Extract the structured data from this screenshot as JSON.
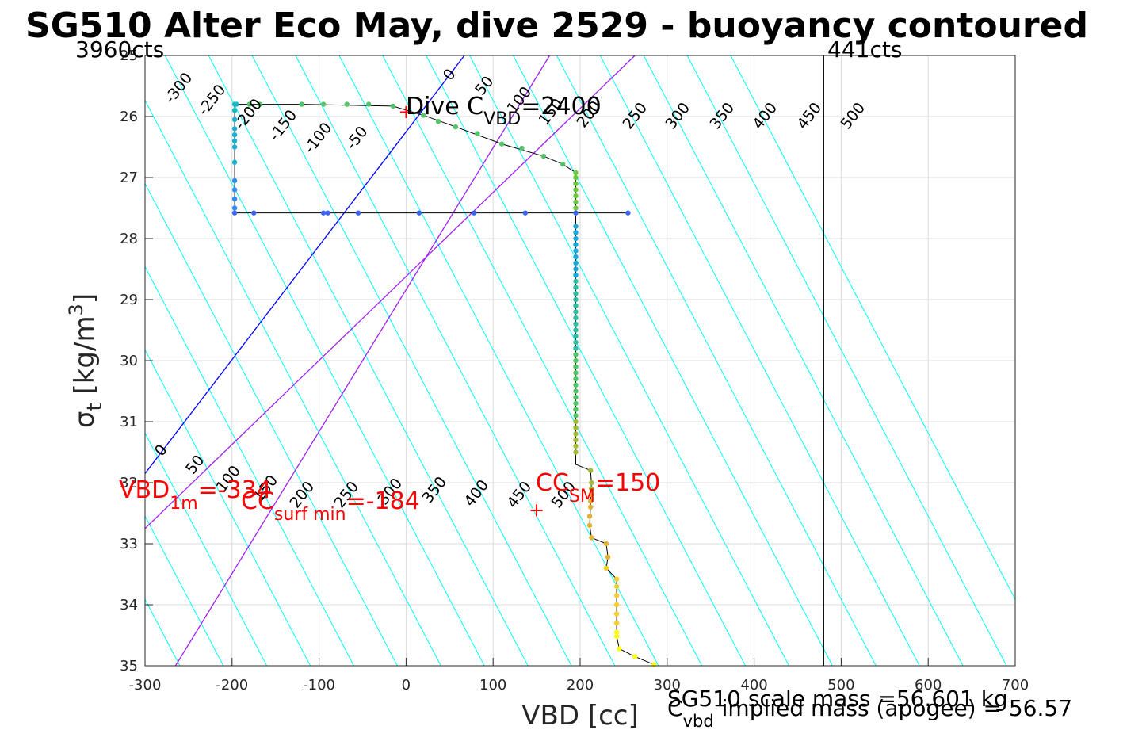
{
  "chart_data": {
    "type": "scatter",
    "title": "SG510 Alter Eco May, dive 2529 - buoyancy contoured",
    "xlabel": "VBD [cc]",
    "ylabel_main": "σ",
    "ylabel_sub": "t",
    "ylabel_unit": " [kg/m",
    "ylabel_sup": "3",
    "ylabel_close": "]",
    "xlim": [
      -300,
      700
    ],
    "ylim": [
      25,
      35
    ],
    "y_reversed": true,
    "grid": true,
    "xticks": [
      "-300",
      "-200",
      "-100",
      "0",
      "100",
      "200",
      "300",
      "400",
      "500",
      "600",
      "700"
    ],
    "yticks": [
      "25",
      "26",
      "27",
      "28",
      "29",
      "30",
      "31",
      "32",
      "33",
      "34",
      "35"
    ],
    "corner_left": "3960cts",
    "corner_right": "441cts",
    "vertical_line_vbd": 480,
    "buoyancy_contours": {
      "color": "#00ffff",
      "values": [
        -300,
        -250,
        -200,
        -150,
        -100,
        -50,
        0,
        50,
        100,
        150,
        200,
        250,
        300,
        350,
        400,
        450,
        500,
        550,
        600,
        650,
        700,
        750,
        800
      ],
      "labels_top": [
        "-300",
        "-250",
        "-200",
        "-150",
        "-100",
        "-50",
        "0",
        "50",
        "100",
        "150",
        "200",
        "250",
        "300",
        "350",
        "400",
        "450",
        "500"
      ],
      "labels_bottom": [
        "0",
        "50",
        "100",
        "150",
        "200",
        "250",
        "300",
        "350",
        "400",
        "450",
        "500"
      ]
    },
    "highlight_lines": [
      {
        "color": "#0000ff",
        "vbd_at_sigma25": 67,
        "vbd_at_sigma35": -300
      },
      {
        "color": "#a020f0",
        "vbd_at_sigma25": 165,
        "vbd_at_sigma35": -265
      },
      {
        "color": "#a020f0",
        "vbd_at_sigma25": 263,
        "vbd_at_sigma35": -300
      }
    ],
    "series": [
      {
        "points": [
          [
            -197,
            25.8
          ],
          [
            -197,
            25.9
          ],
          [
            -197,
            26.05
          ],
          [
            -197,
            26.2
          ],
          [
            -197,
            26.3
          ],
          [
            -197,
            26.4
          ],
          [
            -197,
            26.5
          ],
          [
            -197,
            26.75
          ],
          [
            -197,
            27.05
          ],
          [
            -197,
            27.2
          ],
          [
            -197,
            27.35
          ],
          [
            -197,
            27.5
          ],
          [
            -197,
            27.58
          ],
          [
            -195,
            25.8
          ],
          [
            -180,
            25.8
          ],
          [
            -168,
            25.8
          ],
          [
            -120,
            25.8
          ],
          [
            -95,
            25.8
          ],
          [
            -68,
            25.8
          ],
          [
            -43,
            25.8
          ],
          [
            -15,
            25.83
          ],
          [
            20,
            25.98
          ],
          [
            37,
            26.08
          ],
          [
            57,
            26.17
          ],
          [
            82,
            26.28
          ],
          [
            110,
            26.45
          ],
          [
            133,
            26.52
          ],
          [
            158,
            26.65
          ],
          [
            180,
            26.78
          ],
          [
            195,
            26.92
          ],
          [
            195,
            27.0
          ],
          [
            195,
            27.1
          ],
          [
            195,
            27.2
          ],
          [
            195,
            27.3
          ],
          [
            195,
            27.4
          ],
          [
            195,
            27.5
          ],
          [
            255,
            27.58
          ],
          [
            195,
            27.58
          ],
          [
            137,
            27.58
          ],
          [
            78,
            27.58
          ],
          [
            15,
            27.58
          ],
          [
            -55,
            27.58
          ],
          [
            -90,
            27.58
          ],
          [
            -95,
            27.58
          ],
          [
            -175,
            27.58
          ],
          [
            195,
            27.8
          ],
          [
            195,
            27.9
          ],
          [
            195,
            28.0
          ],
          [
            195,
            28.1
          ],
          [
            195,
            28.2
          ],
          [
            195,
            28.3
          ],
          [
            195,
            28.4
          ],
          [
            195,
            28.5
          ],
          [
            195,
            28.6
          ],
          [
            195,
            28.7
          ],
          [
            195,
            28.8
          ],
          [
            195,
            28.9
          ],
          [
            195,
            29.0
          ],
          [
            195,
            29.1
          ],
          [
            195,
            29.2
          ],
          [
            195,
            29.3
          ],
          [
            195,
            29.4
          ],
          [
            195,
            29.5
          ],
          [
            195,
            29.6
          ],
          [
            195,
            29.7
          ],
          [
            195,
            29.8
          ],
          [
            195,
            29.9
          ],
          [
            195,
            30.0
          ],
          [
            195,
            30.1
          ],
          [
            195,
            30.2
          ],
          [
            195,
            30.3
          ],
          [
            195,
            30.4
          ],
          [
            195,
            30.5
          ],
          [
            195,
            30.6
          ],
          [
            195,
            30.7
          ],
          [
            195,
            30.8
          ],
          [
            195,
            30.9
          ],
          [
            195,
            31.0
          ],
          [
            195,
            31.1
          ],
          [
            195,
            31.2
          ],
          [
            195,
            31.3
          ],
          [
            195,
            31.4
          ],
          [
            195,
            31.5
          ],
          [
            212,
            31.8
          ],
          [
            213,
            32.0
          ],
          [
            213,
            32.1
          ],
          [
            213,
            32.2
          ],
          [
            212,
            32.3
          ],
          [
            212,
            32.4
          ],
          [
            211,
            32.55
          ],
          [
            211,
            32.7
          ],
          [
            213,
            32.9
          ],
          [
            230,
            33.0
          ],
          [
            232,
            33.22
          ],
          [
            230,
            33.4
          ],
          [
            242,
            33.58
          ],
          [
            242,
            33.7
          ],
          [
            242,
            33.85
          ],
          [
            242,
            34.0
          ],
          [
            242,
            34.15
          ],
          [
            242,
            34.3
          ],
          [
            242,
            34.45
          ],
          [
            242,
            34.52
          ],
          [
            245,
            34.72
          ],
          [
            263,
            34.85
          ],
          [
            285,
            34.98
          ]
        ]
      }
    ],
    "profile_line": [
      [
        -197,
        27.58
      ],
      [
        -197,
        25.8
      ],
      [
        -180,
        25.8
      ],
      [
        -120,
        25.8
      ],
      [
        -15,
        25.83
      ],
      [
        20,
        25.98
      ],
      [
        57,
        26.17
      ],
      [
        110,
        26.45
      ],
      [
        158,
        26.65
      ],
      [
        180,
        26.78
      ],
      [
        195,
        26.92
      ],
      [
        195,
        27.58
      ],
      [
        255,
        27.58
      ],
      [
        -197,
        27.58
      ],
      [
        195,
        27.58
      ],
      [
        195,
        31.7
      ],
      [
        212,
        31.8
      ],
      [
        213,
        32.0
      ],
      [
        211,
        32.7
      ],
      [
        213,
        32.9
      ],
      [
        230,
        33.0
      ],
      [
        232,
        33.22
      ],
      [
        230,
        33.4
      ],
      [
        242,
        33.58
      ],
      [
        242,
        34.52
      ],
      [
        245,
        34.72
      ],
      [
        263,
        34.85
      ],
      [
        285,
        34.98
      ]
    ],
    "markers": [
      {
        "label": "+",
        "vbd": 0,
        "sigma": 25.92,
        "color": "#ff0000"
      },
      {
        "label": "+",
        "vbd": 150,
        "sigma": 32.45,
        "color": "#ff0000"
      }
    ],
    "annotations": {
      "dive_c_main": "Dive C",
      "dive_c_sub": "VBD",
      "dive_c_value": "=2400",
      "vbd1m_main": "VBD",
      "vbd1m_sub": "1m",
      "vbd1m_value": "=-334",
      "ccsurf_main": "CC",
      "ccsurf_sub": "surf min",
      "ccsurf_value": "=-184",
      "ccsm_main": "CC",
      "ccsm_sub": "SM",
      "ccsm_value": "=150",
      "annotation_color": "#ff0000"
    },
    "footer": {
      "scale_mass": "SG510 scale mass =56.601 kg",
      "cvbd_main": "C",
      "cvbd_sub": "vbd",
      "implied": "implied mass (apogee) = 56.57"
    },
    "colormap": [
      "#3e26a8",
      "#2f6ff2",
      "#1aa9da",
      "#2fbfa0",
      "#52c568",
      "#a3bd3a",
      "#e3b12f",
      "#f8ce2a",
      "#f9fb15"
    ]
  }
}
